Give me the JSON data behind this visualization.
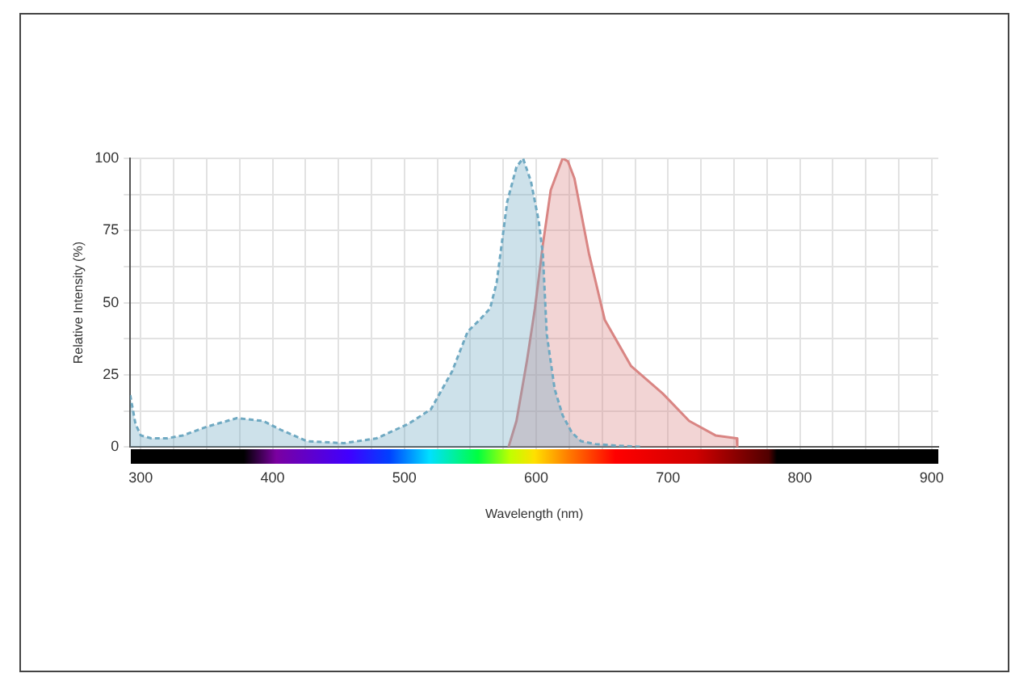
{
  "chart_data": {
    "type": "area",
    "xlabel": "Wavelength (nm)",
    "ylabel": "Relative Intensity (%)",
    "xlim": [
      292,
      905
    ],
    "ylim": [
      0,
      100
    ],
    "xticks": [
      300,
      {
        "value": 325,
        "label": null
      },
      {
        "value": 350,
        "label": null
      },
      {
        "value": 375,
        "label": null
      },
      400,
      {
        "value": 425,
        "label": null
      },
      {
        "value": 450,
        "label": null
      },
      {
        "value": 475,
        "label": null
      },
      500,
      {
        "value": 525,
        "label": null
      },
      {
        "value": 550,
        "label": null
      },
      {
        "value": 575,
        "label": null
      },
      600,
      {
        "value": 625,
        "label": null
      },
      {
        "value": 650,
        "label": null
      },
      {
        "value": 675,
        "label": null
      },
      700,
      {
        "value": 725,
        "label": null
      },
      {
        "value": 750,
        "label": null
      },
      {
        "value": 775,
        "label": null
      },
      800,
      {
        "value": 825,
        "label": null
      },
      {
        "value": 850,
        "label": null
      },
      {
        "value": 875,
        "label": null
      },
      900
    ],
    "yticks": [
      0,
      {
        "value": 12.5,
        "label": null
      },
      25,
      {
        "value": 37.5,
        "label": null
      },
      50,
      {
        "value": 62.5,
        "label": null
      },
      75,
      {
        "value": 87.5,
        "label": null
      },
      100
    ],
    "grid": true,
    "legend": false,
    "marker": "none",
    "series": [
      {
        "color": "#6fa9c2",
        "line_style": "dashed",
        "x": [
          292,
          296,
          300,
          308,
          320,
          332,
          350,
          373,
          393,
          406,
          426,
          454,
          479,
          503,
          520,
          536,
          548,
          557,
          565,
          570,
          578,
          585,
          590,
          596,
          602,
          605,
          608,
          614,
          620,
          627,
          634,
          645,
          660,
          680
        ],
        "values": [
          18,
          8,
          4,
          3,
          3,
          4,
          7,
          10,
          9,
          6,
          2,
          1.3,
          3,
          8,
          13,
          26,
          40,
          44,
          48,
          57,
          85,
          97,
          100,
          92,
          78,
          67,
          39,
          20,
          11,
          5,
          2,
          1,
          0.5,
          0
        ]
      },
      {
        "color": "#d98583",
        "line_style": "solid",
        "x": [
          579,
          585,
          593,
          599,
          605,
          611,
          620,
          624,
          629,
          640,
          652,
          672,
          696,
          716,
          736,
          752,
          752.5
        ],
        "values": [
          0,
          9,
          30,
          48,
          70,
          89,
          100,
          99,
          93,
          67,
          44,
          28,
          18.5,
          9,
          4,
          3,
          0
        ]
      }
    ]
  }
}
